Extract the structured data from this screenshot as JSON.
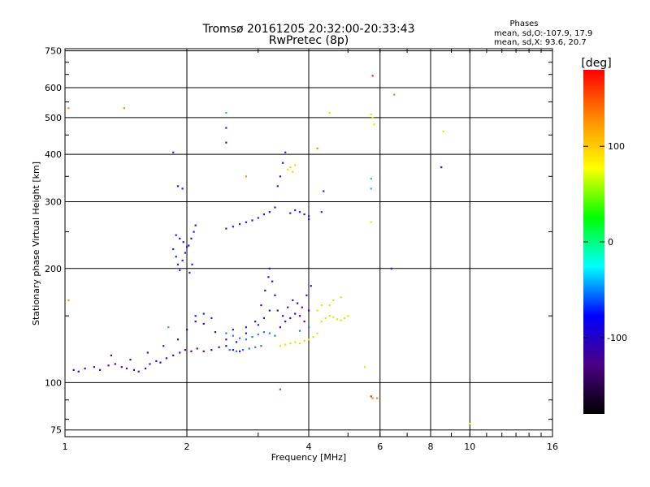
{
  "chart_data": {
    "type": "scatter",
    "title": "Tromsø 20161205 20:32:00-20:33:43",
    "subtitle": "RwPretec (8p)",
    "xlabel": "Frequency [MHz]",
    "ylabel": "Stationary phase Virtual Height [km]",
    "x_scale": "log",
    "y_scale": "log",
    "xlim": [
      1,
      16
    ],
    "ylim": [
      72,
      760
    ],
    "x_ticks": [
      1,
      2,
      4,
      6,
      8,
      10,
      16
    ],
    "y_ticks": [
      75,
      100,
      200,
      300,
      400,
      500,
      600,
      750
    ],
    "grid": true,
    "legend": {
      "title": "Phases",
      "lines": [
        "mean, sd,O:-107.9, 17.9",
        "mean, sd,X:  93.6, 20.7"
      ]
    },
    "colorbar": {
      "label": "[deg]",
      "range": [
        -180,
        180
      ],
      "ticks": [
        100,
        0,
        -100
      ],
      "colors": [
        "#000000",
        "#4b0082",
        "#0000ff",
        "#00ffff",
        "#00ff00",
        "#ffff00",
        "#ff8c00",
        "#ff0000"
      ]
    },
    "series": [
      {
        "values": [
          [
            1.05,
            108
          ],
          [
            1.08,
            107
          ],
          [
            1.12,
            109
          ],
          [
            1.18,
            110
          ],
          [
            1.22,
            108
          ],
          [
            1.28,
            111
          ],
          [
            1.33,
            112
          ],
          [
            1.38,
            110
          ],
          [
            1.42,
            109
          ],
          [
            1.48,
            108
          ],
          [
            1.52,
            107
          ],
          [
            1.58,
            109
          ],
          [
            1.62,
            112
          ],
          [
            1.68,
            114
          ],
          [
            1.72,
            113
          ],
          [
            1.78,
            116
          ],
          [
            1.85,
            118
          ],
          [
            1.92,
            120
          ],
          [
            1.98,
            122
          ],
          [
            2.05,
            121
          ],
          [
            2.12,
            123
          ],
          [
            2.2,
            121
          ],
          [
            2.3,
            122
          ],
          [
            2.4,
            124
          ],
          [
            2.5,
            125
          ],
          [
            2.6,
            122
          ],
          [
            2.7,
            121
          ],
          [
            1.3,
            118
          ],
          [
            1.45,
            115
          ],
          [
            1.6,
            120
          ],
          [
            1.75,
            125
          ],
          [
            1.9,
            130
          ],
          [
            2.0,
            138
          ],
          [
            2.1,
            145
          ],
          [
            2.2,
            143
          ],
          [
            2.35,
            136
          ],
          [
            2.5,
            130
          ],
          [
            2.65,
            128
          ],
          [
            2.8,
            135
          ],
          [
            2.95,
            145
          ],
          [
            3.05,
            160
          ],
          [
            3.12,
            175
          ],
          [
            3.18,
            190
          ],
          [
            3.2,
            200
          ],
          [
            3.25,
            185
          ],
          [
            3.3,
            170
          ],
          [
            3.35,
            155
          ],
          [
            3.45,
            150
          ],
          [
            3.55,
            158
          ],
          [
            3.65,
            165
          ],
          [
            3.75,
            162
          ],
          [
            3.85,
            158
          ],
          [
            3.95,
            170
          ],
          [
            4.05,
            180
          ],
          [
            3.4,
            140
          ],
          [
            3.5,
            145
          ],
          [
            3.6,
            148
          ],
          [
            3.7,
            152
          ],
          [
            3.8,
            150
          ],
          [
            3.9,
            145
          ],
          [
            4.0,
            155
          ]
        ],
        "color": "#4b00c8"
      },
      {
        "values": [
          [
            1.85,
            225
          ],
          [
            1.88,
            215
          ],
          [
            1.9,
            205
          ],
          [
            1.92,
            198
          ],
          [
            1.95,
            210
          ],
          [
            1.98,
            220
          ],
          [
            2.02,
            230
          ],
          [
            2.05,
            240
          ],
          [
            2.08,
            250
          ],
          [
            1.88,
            245
          ],
          [
            1.92,
            240
          ],
          [
            1.96,
            235
          ],
          [
            2.0,
            228
          ],
          [
            2.03,
            195
          ],
          [
            2.06,
            205
          ],
          [
            2.1,
            260
          ],
          [
            1.9,
            330
          ],
          [
            1.95,
            325
          ],
          [
            2.5,
            255
          ],
          [
            2.6,
            258
          ],
          [
            2.7,
            262
          ],
          [
            2.8,
            265
          ],
          [
            2.9,
            268
          ],
          [
            3.0,
            272
          ],
          [
            3.1,
            278
          ],
          [
            3.2,
            282
          ],
          [
            3.3,
            290
          ],
          [
            3.35,
            330
          ],
          [
            3.4,
            350
          ],
          [
            3.45,
            380
          ],
          [
            3.5,
            405
          ],
          [
            3.6,
            280
          ],
          [
            3.7,
            285
          ],
          [
            3.8,
            282
          ],
          [
            3.9,
            278
          ],
          [
            4.0,
            275
          ],
          [
            2.1,
            150
          ],
          [
            2.2,
            152
          ],
          [
            2.3,
            148
          ],
          [
            2.6,
            138
          ],
          [
            2.8,
            140
          ],
          [
            3.0,
            142
          ],
          [
            3.1,
            148
          ],
          [
            3.2,
            155
          ],
          [
            4.0,
            270
          ],
          [
            4.3,
            282
          ],
          [
            4.35,
            320
          ],
          [
            1.85,
            405
          ],
          [
            2.5,
            470
          ],
          [
            2.5,
            430
          ],
          [
            8.5,
            370
          ],
          [
            6.4,
            200
          ]
        ],
        "color": "#1a1aff"
      },
      {
        "values": [
          [
            2.5,
            135
          ],
          [
            2.6,
            133
          ],
          [
            2.7,
            131
          ],
          [
            2.8,
            130
          ],
          [
            2.9,
            132
          ],
          [
            3.0,
            134
          ],
          [
            3.1,
            136
          ],
          [
            3.2,
            135
          ],
          [
            3.3,
            133
          ],
          [
            2.55,
            122
          ],
          [
            2.65,
            121
          ],
          [
            2.75,
            122
          ],
          [
            2.85,
            123
          ],
          [
            2.95,
            124
          ],
          [
            3.05,
            125
          ],
          [
            3.4,
            96
          ],
          [
            4.0,
            140
          ],
          [
            3.8,
            137
          ]
        ],
        "color": "#1e78ff"
      },
      {
        "values": [
          [
            2.5,
            515
          ],
          [
            5.7,
            345
          ],
          [
            5.7,
            325
          ]
        ],
        "color": "#00c8e6"
      },
      {
        "values": [
          [
            1.8,
            140
          ]
        ],
        "color": "#22cc22"
      },
      {
        "values": [
          [
            3.4,
            125
          ],
          [
            3.5,
            126
          ],
          [
            3.6,
            127
          ],
          [
            3.7,
            128
          ],
          [
            3.8,
            127
          ],
          [
            3.9,
            129
          ],
          [
            4.0,
            130
          ],
          [
            4.1,
            132
          ],
          [
            4.2,
            135
          ],
          [
            4.3,
            145
          ],
          [
            4.4,
            148
          ],
          [
            4.5,
            150
          ],
          [
            4.6,
            149
          ],
          [
            4.7,
            147
          ],
          [
            4.8,
            146
          ],
          [
            4.9,
            148
          ],
          [
            5.0,
            150
          ],
          [
            4.5,
            160
          ],
          [
            4.6,
            165
          ],
          [
            4.8,
            168
          ],
          [
            4.2,
            155
          ],
          [
            4.3,
            160
          ],
          [
            3.55,
            365
          ],
          [
            3.6,
            370
          ],
          [
            3.65,
            360
          ],
          [
            3.7,
            375
          ],
          [
            4.5,
            515
          ],
          [
            5.7,
            510
          ],
          [
            5.75,
            500
          ],
          [
            5.8,
            480
          ],
          [
            8.6,
            460
          ],
          [
            5.5,
            110
          ],
          [
            5.7,
            265
          ],
          [
            10.0,
            78
          ]
        ],
        "color": "#e6e600"
      },
      {
        "values": [
          [
            1.02,
            530
          ],
          [
            1.02,
            165
          ],
          [
            1.4,
            530
          ],
          [
            2.8,
            350
          ],
          [
            4.2,
            415
          ],
          [
            6.5,
            575
          ],
          [
            5.75,
            91
          ],
          [
            5.9,
            91
          ]
        ],
        "color": "#ff8c00"
      },
      {
        "values": [
          [
            5.75,
            645
          ],
          [
            5.7,
            92
          ]
        ],
        "color": "#ff2000"
      }
    ]
  }
}
